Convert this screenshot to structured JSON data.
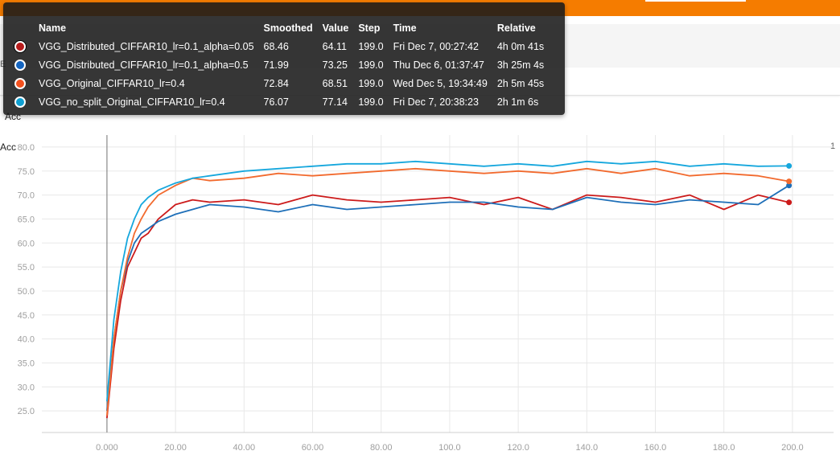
{
  "page": {
    "card_left_label": "Acc",
    "card_count": "1",
    "edge_text": "E",
    "chart_title": "Acc"
  },
  "tooltip": {
    "headers": {
      "name": "Name",
      "smoothed": "Smoothed",
      "value": "Value",
      "step": "Step",
      "time": "Time",
      "relative": "Relative"
    },
    "rows": [
      {
        "color": "#b71c1c",
        "name": "VGG_Distributed_CIFFAR10_lr=0.1_alpha=0.05",
        "smoothed": "68.46",
        "value": "64.11",
        "step": "199.0",
        "time": "Fri Dec 7, 00:27:42",
        "relative": "4h 0m 41s"
      },
      {
        "color": "#1565c0",
        "name": "VGG_Distributed_CIFFAR10_lr=0.1_alpha=0.5",
        "smoothed": "71.99",
        "value": "73.25",
        "step": "199.0",
        "time": "Thu Dec 6, 01:37:47",
        "relative": "3h 25m 4s"
      },
      {
        "color": "#f4511e",
        "name": "VGG_Original_CIFFAR10_lr=0.4",
        "smoothed": "72.84",
        "value": "68.51",
        "step": "199.0",
        "time": "Wed Dec 5, 19:34:49",
        "relative": "2h 5m 45s"
      },
      {
        "color": "#0fa0d2",
        "name": "VGG_no_split_Original_CIFFAR10_lr=0.4",
        "smoothed": "76.07",
        "value": "77.14",
        "step": "199.0",
        "time": "Fri Dec 7, 20:38:23",
        "relative": "2h 1m 6s"
      }
    ]
  },
  "chart_data": {
    "type": "line",
    "title": "Acc",
    "xlabel": "",
    "ylabel": "",
    "xlim": [
      -19,
      212
    ],
    "ylim": [
      20.5,
      82.5
    ],
    "x_ticks": [
      "0.000",
      "20.00",
      "40.00",
      "60.00",
      "80.00",
      "100.0",
      "120.0",
      "140.0",
      "160.0",
      "180.0",
      "200.0"
    ],
    "y_ticks": [
      "25.0",
      "30.0",
      "35.0",
      "40.0",
      "45.0",
      "50.0",
      "55.0",
      "60.0",
      "65.0",
      "70.0",
      "75.0",
      "80.0"
    ],
    "grid": true,
    "series": [
      {
        "name": "VGG_Distributed_CIFFAR10_lr=0.1_alpha=0.05",
        "color": "#cc1b1b",
        "x": [
          0,
          2,
          4,
          6,
          8,
          10,
          12,
          15,
          20,
          25,
          30,
          40,
          50,
          60,
          70,
          80,
          90,
          100,
          110,
          120,
          130,
          140,
          150,
          160,
          170,
          180,
          190,
          199
        ],
        "y": [
          23.5,
          38,
          48,
          55,
          58,
          61,
          62,
          65,
          68,
          69,
          68.5,
          69,
          68,
          70,
          69,
          68.5,
          69,
          69.5,
          68,
          69.5,
          67,
          70,
          69.5,
          68.5,
          70,
          67,
          70,
          68.46
        ]
      },
      {
        "name": "VGG_Distributed_CIFFAR10_lr=0.1_alpha=0.5",
        "color": "#1e6fb8",
        "x": [
          0,
          2,
          4,
          6,
          8,
          10,
          12,
          15,
          20,
          25,
          30,
          40,
          50,
          60,
          70,
          80,
          90,
          100,
          110,
          120,
          130,
          140,
          150,
          160,
          170,
          180,
          190,
          199
        ],
        "y": [
          25,
          40,
          50,
          56,
          60,
          62,
          63,
          64.5,
          66,
          67,
          68,
          67.5,
          66.5,
          68,
          67,
          67.5,
          68,
          68.5,
          68.5,
          67.5,
          67,
          69.5,
          68.5,
          68,
          69,
          68.5,
          68,
          71.99
        ]
      },
      {
        "name": "VGG_Original_CIFFAR10_lr=0.4",
        "color": "#f26a2e",
        "x": [
          0,
          2,
          4,
          6,
          8,
          10,
          12,
          15,
          20,
          25,
          30,
          40,
          50,
          60,
          70,
          80,
          90,
          100,
          110,
          120,
          130,
          140,
          150,
          160,
          170,
          180,
          190,
          199
        ],
        "y": [
          24,
          40,
          50,
          57,
          62,
          65,
          67.5,
          70,
          72,
          73.5,
          73,
          73.5,
          74.5,
          74,
          74.5,
          75,
          75.5,
          75,
          74.5,
          75,
          74.5,
          75.5,
          74.5,
          75.5,
          74,
          74.5,
          74,
          72.84
        ]
      },
      {
        "name": "VGG_no_split_Original_CIFFAR10_lr=0.4",
        "color": "#16a7dd",
        "x": [
          0,
          2,
          4,
          6,
          8,
          10,
          12,
          15,
          20,
          25,
          30,
          40,
          50,
          60,
          70,
          80,
          90,
          100,
          110,
          120,
          130,
          140,
          150,
          160,
          170,
          180,
          190,
          199
        ],
        "y": [
          27,
          44,
          54,
          61,
          65,
          68,
          69.5,
          71,
          72.5,
          73.5,
          74,
          75,
          75.5,
          76,
          76.5,
          76.5,
          77,
          76.5,
          76,
          76.5,
          76,
          77,
          76.5,
          77,
          76,
          76.5,
          76,
          76.07
        ]
      }
    ]
  }
}
